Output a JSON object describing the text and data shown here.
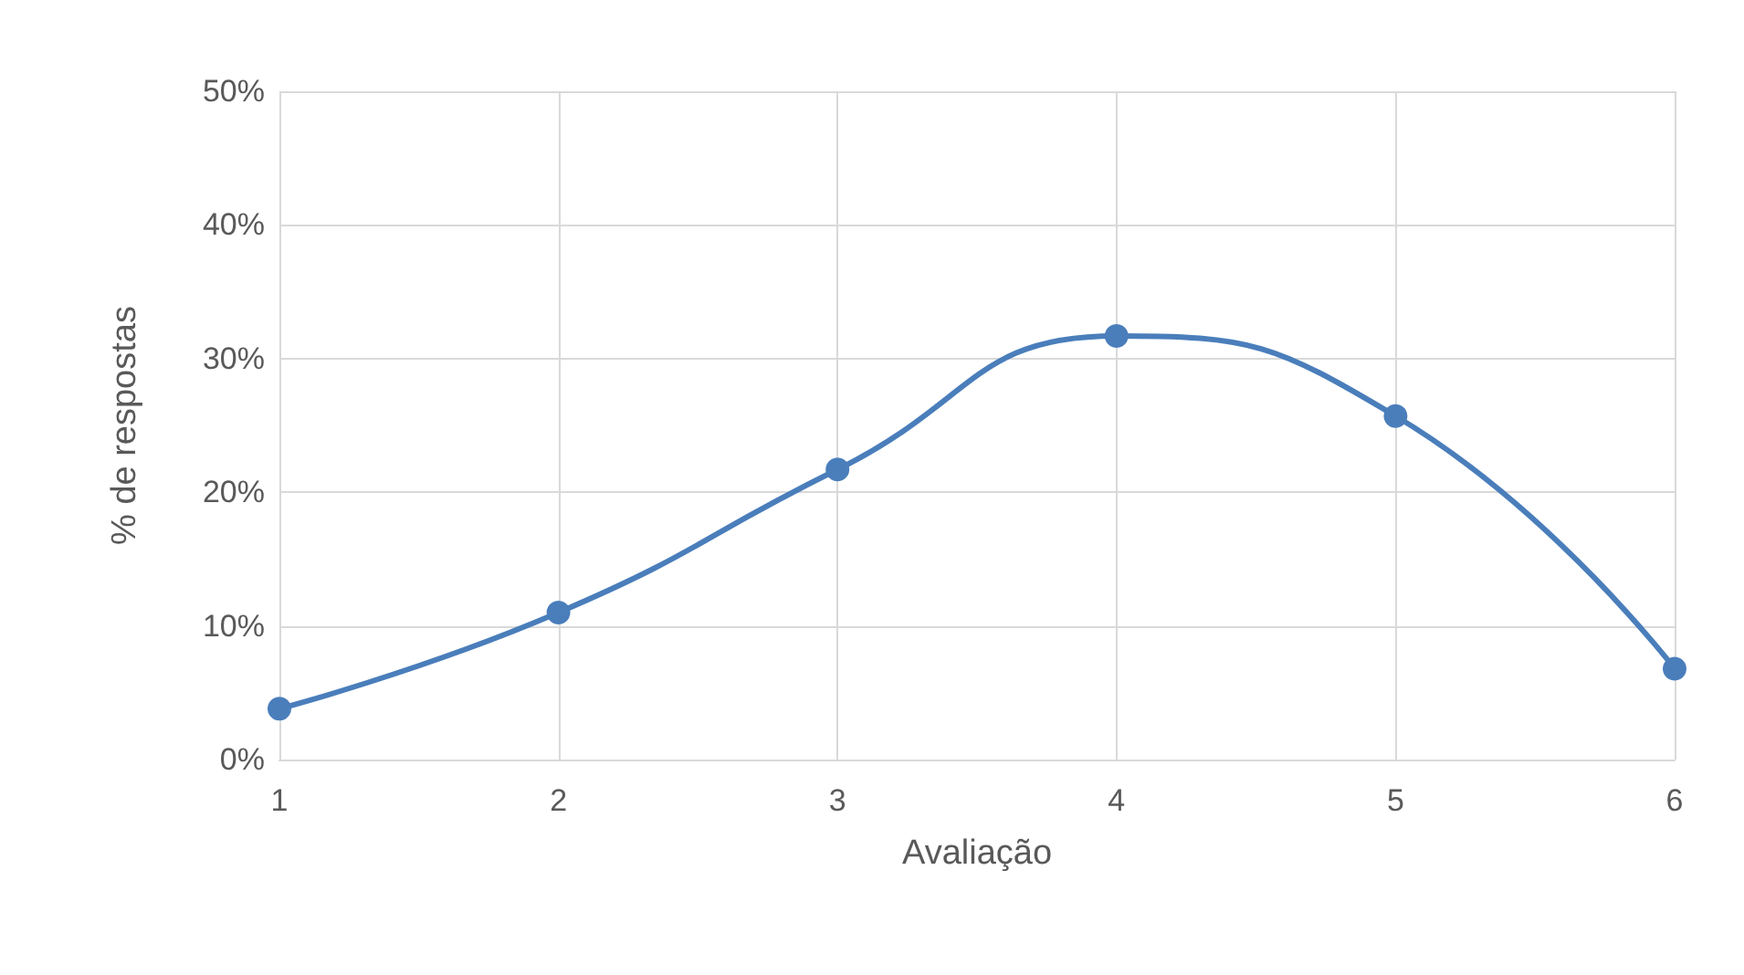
{
  "chart_data": {
    "type": "line",
    "xlabel": "Avaliação",
    "ylabel": "% de respostas",
    "categories": [
      "1",
      "2",
      "3",
      "4",
      "5",
      "6"
    ],
    "series": [
      {
        "color": "#4a7ebb",
        "values": [
          3.8,
          11.0,
          21.7,
          31.7,
          25.7,
          6.8
        ]
      }
    ],
    "ylim": [
      0,
      50
    ],
    "yticks": [
      {
        "value": 0,
        "label": "0%"
      },
      {
        "value": 10,
        "label": "10%"
      },
      {
        "value": 20,
        "label": "20%"
      },
      {
        "value": 30,
        "label": "30%"
      },
      {
        "value": 40,
        "label": "40%"
      },
      {
        "value": 50,
        "label": "50%"
      }
    ],
    "grid": true,
    "marker": "circle",
    "line_style": "solid"
  }
}
